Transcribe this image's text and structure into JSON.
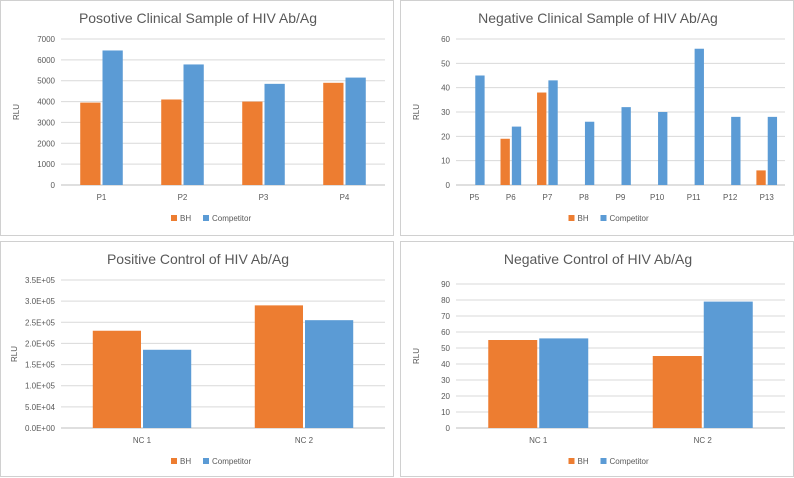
{
  "colors": {
    "bh": "#ed7d31",
    "competitor": "#5b9bd5",
    "grid": "#d9d9d9",
    "axis": "#bfbfbf",
    "text": "#595959"
  },
  "chart_data": [
    {
      "type": "bar",
      "title": "Posotive Clinical Sample of HIV Ab/Ag",
      "xlabel": "",
      "ylabel": "RLU",
      "ylim": [
        0,
        7000
      ],
      "yticks": [
        "0",
        "1000",
        "2000",
        "3000",
        "4000",
        "5000",
        "6000",
        "7000"
      ],
      "categories": [
        "P1",
        "P2",
        "P3",
        "P4"
      ],
      "series": [
        {
          "name": "BH",
          "values": [
            3950,
            4100,
            4000,
            4900
          ]
        },
        {
          "name": "Competitor",
          "values": [
            6450,
            5780,
            4850,
            5150
          ]
        }
      ],
      "legend": "bottom",
      "grid": true
    },
    {
      "type": "bar",
      "title": "Negative Clinical Sample of HIV Ab/Ag",
      "xlabel": "",
      "ylabel": "RLU",
      "ylim": [
        0,
        60
      ],
      "yticks": [
        "0",
        "10",
        "20",
        "30",
        "40",
        "50",
        "60"
      ],
      "categories": [
        "P5",
        "P6",
        "P7",
        "P8",
        "P9",
        "P10",
        "P11",
        "P12",
        "P13"
      ],
      "series": [
        {
          "name": "BH",
          "values": [
            0,
            19,
            38,
            0,
            0,
            0,
            0,
            0,
            6
          ]
        },
        {
          "name": "Competitor",
          "values": [
            45,
            24,
            43,
            26,
            32,
            30,
            56,
            28,
            28
          ]
        }
      ],
      "legend": "bottom",
      "grid": true
    },
    {
      "type": "bar",
      "title": "Positive Control of HIV Ab/Ag",
      "xlabel": "",
      "ylabel": "RLU",
      "ylim": [
        0,
        350000
      ],
      "yticks": [
        "0.0E+00",
        "5.0E+04",
        "1.0E+05",
        "1.5E+05",
        "2.0E+05",
        "2.5E+05",
        "3.0E+05",
        "3.5E+05"
      ],
      "categories": [
        "NC 1",
        "NC 2"
      ],
      "series": [
        {
          "name": "BH",
          "values": [
            230000,
            290000
          ]
        },
        {
          "name": "Competitor",
          "values": [
            185000,
            255000
          ]
        }
      ],
      "legend": "bottom",
      "grid": true
    },
    {
      "type": "bar",
      "title": "Negative Control of  HIV Ab/Ag",
      "xlabel": "",
      "ylabel": "RLU",
      "ylim": [
        0,
        90
      ],
      "yticks": [
        "0",
        "10",
        "20",
        "30",
        "40",
        "50",
        "60",
        "70",
        "80",
        "90"
      ],
      "categories": [
        "NC 1",
        "NC 2"
      ],
      "series": [
        {
          "name": "BH",
          "values": [
            55,
            45
          ]
        },
        {
          "name": "Competitor",
          "values": [
            56,
            79
          ]
        }
      ],
      "legend": "bottom",
      "grid": true
    }
  ]
}
